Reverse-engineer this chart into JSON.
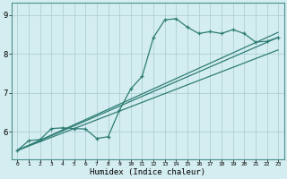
{
  "xlabel": "Humidex (Indice chaleur)",
  "xlim": [
    -0.5,
    23.5
  ],
  "ylim": [
    5.3,
    9.3
  ],
  "xticks": [
    0,
    1,
    2,
    3,
    4,
    5,
    6,
    7,
    8,
    9,
    10,
    11,
    12,
    13,
    14,
    15,
    16,
    17,
    18,
    19,
    20,
    21,
    22,
    23
  ],
  "yticks": [
    6,
    7,
    8,
    9
  ],
  "bg_color": "#d4edf0",
  "line_color": "#2e7d74",
  "grid_color": "#aed0d6",
  "curve_x": [
    0,
    1,
    2,
    3,
    4,
    5,
    6,
    7,
    8,
    9,
    10,
    11,
    12,
    13,
    14,
    15,
    16,
    17,
    18,
    19,
    20,
    21,
    22,
    23
  ],
  "curve_y": [
    5.52,
    5.77,
    5.8,
    6.08,
    6.1,
    6.08,
    6.07,
    5.83,
    5.87,
    6.55,
    7.1,
    7.42,
    8.42,
    8.87,
    8.9,
    8.68,
    8.52,
    8.57,
    8.52,
    8.62,
    8.52,
    8.3,
    8.32,
    8.42
  ],
  "line2_x": [
    0,
    23
  ],
  "line2_y": [
    5.52,
    8.55
  ],
  "line3_x": [
    0,
    23
  ],
  "line3_y": [
    5.52,
    8.42
  ],
  "line4_x": [
    0,
    23
  ],
  "line4_y": [
    5.52,
    8.1
  ]
}
